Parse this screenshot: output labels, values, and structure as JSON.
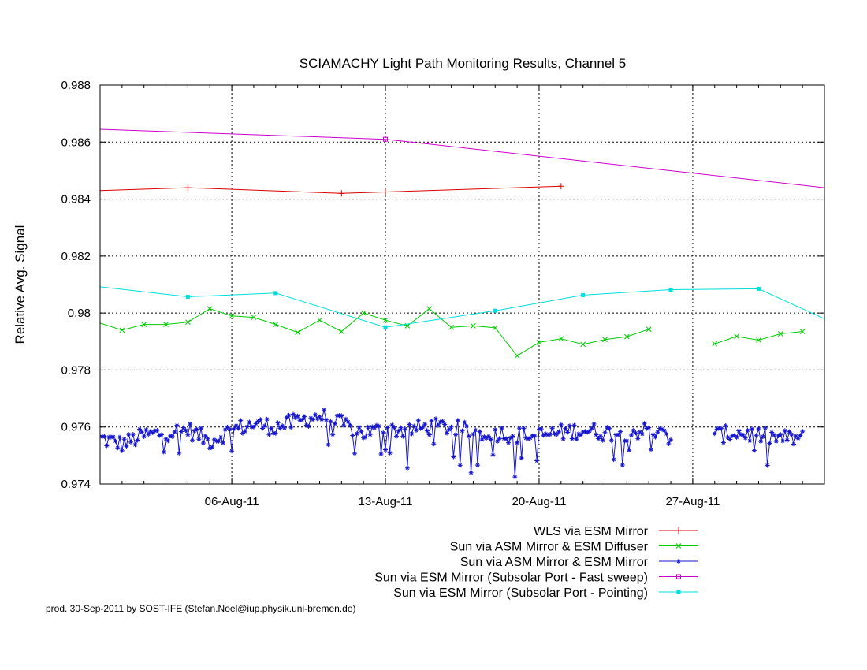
{
  "chart_data": {
    "type": "line",
    "title": "SCIAMACHY Light Path Monitoring Results, Channel 5",
    "xlabel": "",
    "ylabel": "Relative Avg. Signal",
    "ylim": [
      0.974,
      0.988
    ],
    "xlim": [
      "2011-07-31",
      "2011-09-02"
    ],
    "yticks": [
      "0.974",
      "0.976",
      "0.978",
      "0.98",
      "0.982",
      "0.984",
      "0.986",
      "0.988"
    ],
    "xticks": [
      {
        "date": "2011-08-06",
        "label": "06-Aug-11"
      },
      {
        "date": "2011-08-13",
        "label": "13-Aug-11"
      },
      {
        "date": "2011-08-20",
        "label": "20-Aug-11"
      },
      {
        "date": "2011-08-27",
        "label": "27-Aug-11"
      }
    ],
    "grid": true,
    "legend_position": "bottom-right",
    "series": [
      {
        "name": "WLS via ESM Mirror",
        "color": "#dd0000",
        "marker": "plus",
        "points": [
          [
            "2011-07-31",
            0.9843
          ],
          [
            "2011-08-04",
            0.9844
          ],
          [
            "2011-08-11",
            0.9842
          ],
          [
            "2011-08-13",
            0.98425
          ],
          [
            "2011-08-21",
            0.98445
          ]
        ]
      },
      {
        "name": "Sun via ASM Mirror & ESM Diffuser",
        "color": "#00cc00",
        "marker": "x",
        "points": [
          [
            "2011-07-31",
            0.97965
          ],
          [
            "2011-08-01",
            0.9794
          ],
          [
            "2011-08-02",
            0.9796
          ],
          [
            "2011-08-03",
            0.9796
          ],
          [
            "2011-08-04",
            0.97968
          ],
          [
            "2011-08-05",
            0.98015
          ],
          [
            "2011-08-06",
            0.9799
          ],
          [
            "2011-08-07",
            0.97985
          ],
          [
            "2011-08-08",
            0.9796
          ],
          [
            "2011-08-09",
            0.97932
          ],
          [
            "2011-08-10",
            0.97975
          ],
          [
            "2011-08-11",
            0.97935
          ],
          [
            "2011-08-12",
            0.98
          ],
          [
            "2011-08-13",
            0.97975
          ],
          [
            "2011-08-14",
            0.97955
          ],
          [
            "2011-08-15",
            0.98015
          ],
          [
            "2011-08-16",
            0.9795
          ],
          [
            "2011-08-17",
            0.97955
          ],
          [
            "2011-08-18",
            0.97948
          ],
          [
            "2011-08-19",
            0.9785
          ],
          [
            "2011-08-20",
            0.97897
          ],
          [
            "2011-08-21",
            0.9791
          ],
          [
            "2011-08-22",
            0.9789
          ],
          [
            "2011-08-23",
            0.97907
          ],
          [
            "2011-08-24",
            0.97917
          ],
          [
            "2011-08-25",
            0.97943
          ],
          null,
          [
            "2011-08-28",
            0.97892
          ],
          [
            "2011-08-29",
            0.97918
          ],
          [
            "2011-08-30",
            0.97905
          ],
          [
            "2011-08-31",
            0.97927
          ],
          [
            "2011-09-01",
            0.97935
          ]
        ]
      },
      {
        "name": "Sun via ASM Mirror & ESM Mirror",
        "color": "#1515cc",
        "marker": "star",
        "dense": true,
        "points": [
          [
            "2011-07-31",
            0.9756
          ],
          [
            "2011-08-01",
            0.9754
          ],
          [
            "2011-08-02",
            0.9757
          ],
          [
            "2011-08-03",
            0.9758
          ],
          [
            "2011-08-04",
            0.9759
          ],
          [
            "2011-08-05",
            0.9755
          ],
          [
            "2011-08-06",
            0.9759
          ],
          [
            "2011-08-07",
            0.9761
          ],
          [
            "2011-08-08",
            0.976
          ],
          [
            "2011-08-09",
            0.9762
          ],
          [
            "2011-08-10",
            0.9764
          ],
          [
            "2011-08-11",
            0.9761
          ],
          [
            "2011-08-12",
            0.9758
          ],
          [
            "2011-08-13",
            0.9759
          ],
          [
            "2011-08-14",
            0.9759
          ],
          [
            "2011-08-15",
            0.976
          ],
          [
            "2011-08-16",
            0.976
          ],
          [
            "2011-08-17",
            0.9758
          ],
          [
            "2011-08-18",
            0.9758
          ],
          [
            "2011-08-19",
            0.9757
          ],
          [
            "2011-08-20",
            0.9757
          ],
          [
            "2011-08-21",
            0.9758
          ],
          [
            "2011-08-22",
            0.9759
          ],
          [
            "2011-08-23",
            0.9758
          ],
          [
            "2011-08-24",
            0.9758
          ],
          [
            "2011-08-25",
            0.9759
          ],
          [
            "2011-08-26",
            0.9756
          ],
          null,
          [
            "2011-08-28",
            0.9757
          ],
          [
            "2011-08-29",
            0.9758
          ],
          [
            "2011-08-30",
            0.9757
          ],
          [
            "2011-08-31",
            0.9756
          ],
          [
            "2011-09-01",
            0.9756
          ]
        ]
      },
      {
        "name": "Sun via ESM Mirror (Subsolar Port - Fast sweep)",
        "color": "#cc00cc",
        "marker": "open-square",
        "points": [
          [
            "2011-07-31",
            0.98645
          ],
          [
            "2011-08-13",
            0.9861
          ],
          [
            "2011-09-02",
            0.9844
          ]
        ]
      },
      {
        "name": "Sun via ESM Mirror (Subsolar Port - Pointing)",
        "color": "#00dddd",
        "marker": "filled-square",
        "points": [
          [
            "2011-07-31",
            0.98092
          ],
          [
            "2011-08-04",
            0.98057
          ],
          [
            "2011-08-08",
            0.9807
          ],
          [
            "2011-08-13",
            0.9795
          ],
          [
            "2011-08-18",
            0.98008
          ],
          [
            "2011-08-22",
            0.98063
          ],
          [
            "2011-08-26",
            0.98082
          ],
          [
            "2011-08-30",
            0.98085
          ],
          [
            "2011-09-02",
            0.9798
          ]
        ]
      }
    ]
  },
  "footer": "prod. 30-Sep-2011 by SOST-IFE (Stefan.Noel@iup.physik.uni-bremen.de)"
}
